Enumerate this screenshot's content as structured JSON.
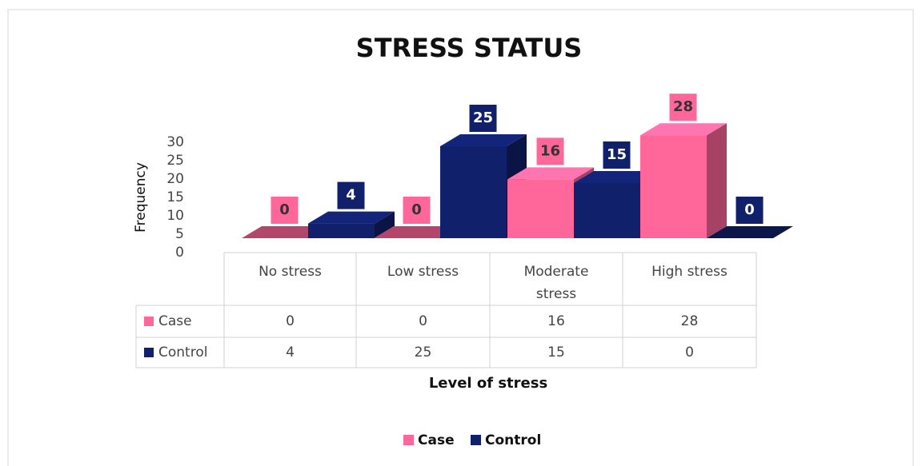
{
  "chart_data": {
    "type": "bar3d",
    "title": "STRESS STATUS",
    "y_label": "Frequency",
    "x_label": "Level of stress",
    "categories": [
      "No stress",
      "Low stress",
      "Moderate stress",
      "High stress"
    ],
    "series": [
      {
        "name": "Case",
        "color": "#ff6699",
        "values": [
          0,
          0,
          16,
          28
        ]
      },
      {
        "name": "Control",
        "color": "#10206a",
        "values": [
          4,
          25,
          15,
          0
        ]
      }
    ],
    "ylim": [
      0,
      30
    ],
    "yticks": [
      0,
      5,
      10,
      15,
      20,
      25,
      30
    ],
    "legend": "bottom"
  }
}
